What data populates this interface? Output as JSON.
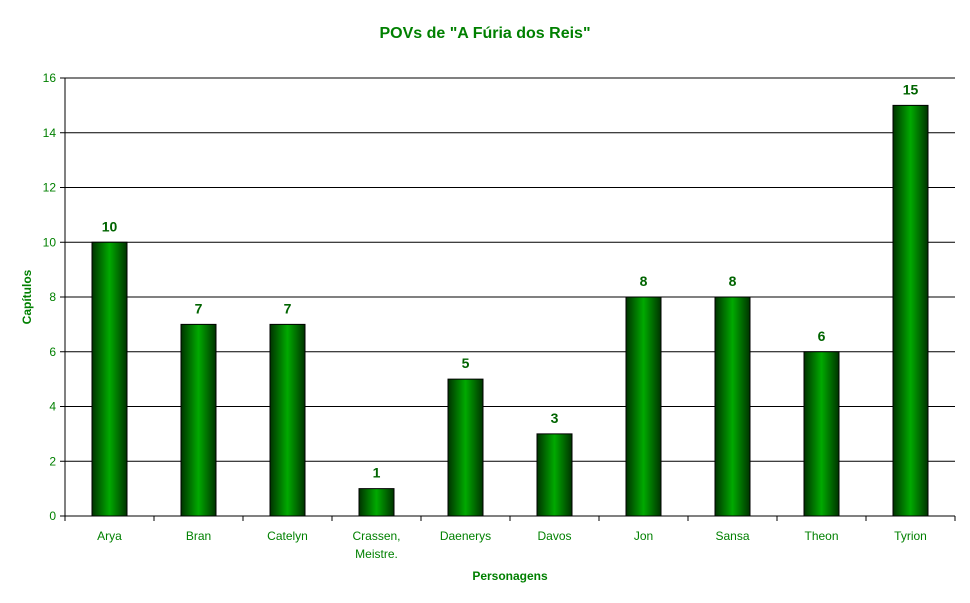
{
  "chart_data": {
    "type": "bar",
    "title": "POVs de \"A Fúria dos Reis\"",
    "xlabel": "Personagens",
    "ylabel": "Capítulos",
    "categories": [
      "Arya",
      "Bran",
      "Catelyn",
      "Crassen, Meistre.",
      "Daenerys",
      "Davos",
      "Jon",
      "Sansa",
      "Theon",
      "Tyrion"
    ],
    "category_lines": [
      [
        "Arya"
      ],
      [
        "Bran"
      ],
      [
        "Catelyn"
      ],
      [
        "Crassen,",
        "Meistre."
      ],
      [
        "Daenerys"
      ],
      [
        "Davos"
      ],
      [
        "Jon"
      ],
      [
        "Sansa"
      ],
      [
        "Theon"
      ],
      [
        "Tyrion"
      ]
    ],
    "values": [
      10,
      7,
      7,
      1,
      5,
      3,
      8,
      8,
      6,
      15
    ],
    "ylim": [
      0,
      16
    ],
    "yticks": [
      0,
      2,
      4,
      6,
      8,
      10,
      12,
      14,
      16
    ],
    "grid": true,
    "legend": "none",
    "colors": {
      "bar_dark": "#003300",
      "bar_mid": "#00aa00",
      "text": "#008000",
      "label": "#006400"
    }
  }
}
